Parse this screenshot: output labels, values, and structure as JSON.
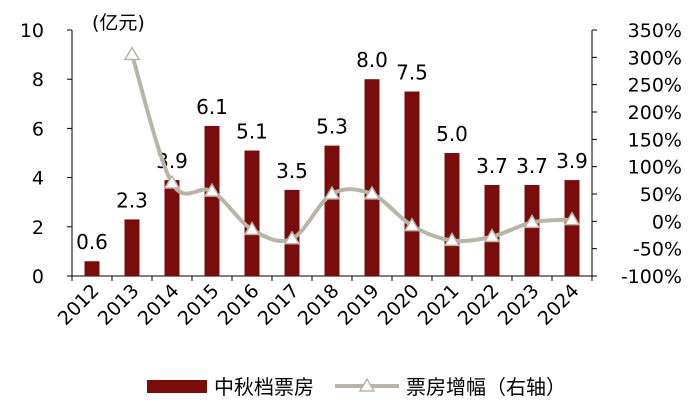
{
  "chart_data": {
    "type": "bar",
    "unit_label": "(亿元)",
    "categories": [
      "2012",
      "2013",
      "2014",
      "2015",
      "2016",
      "2017",
      "2018",
      "2019",
      "2020",
      "2021",
      "2022",
      "2023",
      "2024"
    ],
    "series": [
      {
        "name": "中秋档票房",
        "type": "bar",
        "axis": "left",
        "color": "#7a0c0c",
        "values": [
          0.6,
          2.3,
          3.9,
          6.1,
          5.1,
          3.5,
          5.3,
          8.0,
          7.5,
          5.0,
          3.7,
          3.7,
          3.9
        ],
        "labels": [
          "0.6",
          "2.3",
          "3.9",
          "6.1",
          "5.1",
          "3.5",
          "5.3",
          "8.0",
          "7.5",
          "5.0",
          "3.7",
          "3.7",
          "3.9"
        ]
      },
      {
        "name": "票房增幅（右轴）",
        "type": "line",
        "axis": "right",
        "color": "#b8b5a7",
        "marker": "triangle",
        "values": [
          null,
          305,
          70,
          55,
          -15,
          -32,
          50,
          50,
          -8,
          -35,
          -28,
          -2,
          3
        ]
      }
    ],
    "y_left": {
      "min": 0,
      "max": 10,
      "ticks": [
        "0",
        "2",
        "4",
        "6",
        "8",
        "10"
      ]
    },
    "y_right": {
      "min": -100,
      "max": 350,
      "ticks": [
        "-100%",
        "-50%",
        "0%",
        "50%",
        "100%",
        "150%",
        "200%",
        "250%",
        "300%",
        "350%"
      ]
    },
    "legend_position": "bottom",
    "grid": false
  }
}
